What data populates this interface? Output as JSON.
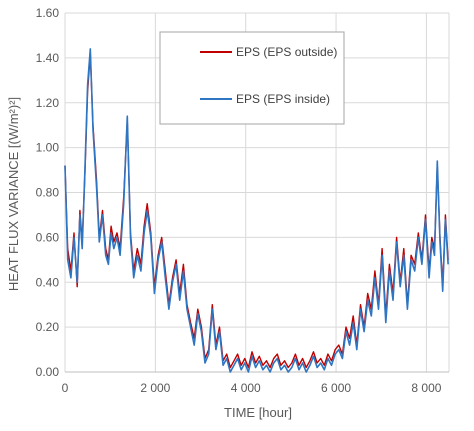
{
  "chart_data": {
    "type": "line",
    "title": "",
    "xlabel": "TIME [hour]",
    "ylabel": "HEAT FLUX VARIANCE [(W/m²)²]",
    "xlim": [
      0,
      8500
    ],
    "ylim": [
      0,
      1.6
    ],
    "x_ticks": [
      0,
      2000,
      4000,
      6000,
      8000
    ],
    "x_tick_labels": [
      "0",
      "2 000",
      "4 000",
      "6 000",
      "8 000"
    ],
    "y_ticks": [
      0,
      0.2,
      0.4,
      0.6,
      0.8,
      1.0,
      1.2,
      1.4,
      1.6
    ],
    "y_tick_labels": [
      "0.00",
      "0.20",
      "0.40",
      "0.60",
      "0.80",
      "1.00",
      "1.20",
      "1.40",
      "1.60"
    ],
    "grid": {
      "horizontal": true,
      "vertical": true
    },
    "legend_position": "top-right",
    "series": [
      {
        "name": "EPS (EPS outside)",
        "color": "#c00000",
        "x": [
          0,
          60,
          130,
          200,
          270,
          330,
          380,
          440,
          500,
          560,
          620,
          700,
          760,
          830,
          900,
          960,
          1020,
          1080,
          1150,
          1220,
          1300,
          1380,
          1450,
          1520,
          1600,
          1680,
          1750,
          1820,
          1900,
          1980,
          2060,
          2140,
          2220,
          2300,
          2380,
          2460,
          2540,
          2620,
          2700,
          2780,
          2860,
          2940,
          3020,
          3100,
          3180,
          3260,
          3340,
          3420,
          3500,
          3580,
          3660,
          3740,
          3820,
          3900,
          3980,
          4060,
          4140,
          4220,
          4300,
          4380,
          4460,
          4540,
          4620,
          4700,
          4780,
          4860,
          4940,
          5020,
          5100,
          5180,
          5260,
          5340,
          5420,
          5500,
          5580,
          5660,
          5740,
          5820,
          5900,
          5980,
          6060,
          6140,
          6220,
          6300,
          6380,
          6460,
          6540,
          6620,
          6700,
          6780,
          6860,
          6940,
          7020,
          7100,
          7180,
          7260,
          7340,
          7420,
          7500,
          7580,
          7660,
          7740,
          7820,
          7900,
          7980,
          8060,
          8120,
          8180,
          8240,
          8300,
          8360,
          8420,
          8480
        ],
        "y": [
          0.92,
          0.55,
          0.45,
          0.62,
          0.38,
          0.72,
          0.58,
          0.88,
          1.25,
          1.42,
          1.1,
          0.85,
          0.6,
          0.72,
          0.55,
          0.5,
          0.65,
          0.58,
          0.62,
          0.55,
          0.78,
          1.12,
          0.62,
          0.45,
          0.55,
          0.48,
          0.65,
          0.75,
          0.62,
          0.38,
          0.52,
          0.6,
          0.45,
          0.3,
          0.42,
          0.5,
          0.35,
          0.48,
          0.3,
          0.22,
          0.15,
          0.28,
          0.2,
          0.06,
          0.1,
          0.3,
          0.12,
          0.2,
          0.05,
          0.08,
          0.02,
          0.05,
          0.08,
          0.03,
          0.06,
          0.02,
          0.09,
          0.04,
          0.07,
          0.03,
          0.05,
          0.02,
          0.06,
          0.08,
          0.03,
          0.05,
          0.02,
          0.04,
          0.08,
          0.03,
          0.06,
          0.02,
          0.05,
          0.09,
          0.04,
          0.06,
          0.03,
          0.08,
          0.05,
          0.1,
          0.12,
          0.08,
          0.2,
          0.15,
          0.25,
          0.12,
          0.3,
          0.2,
          0.35,
          0.28,
          0.45,
          0.3,
          0.55,
          0.25,
          0.48,
          0.35,
          0.6,
          0.4,
          0.55,
          0.3,
          0.52,
          0.48,
          0.62,
          0.5,
          0.7,
          0.45,
          0.6,
          0.55,
          0.92,
          0.6,
          0.38,
          0.7,
          0.5
        ]
      },
      {
        "name": "EPS (EPS inside)",
        "color": "#2e75c2",
        "x": [
          0,
          60,
          130,
          200,
          270,
          330,
          380,
          440,
          500,
          560,
          620,
          700,
          760,
          830,
          900,
          960,
          1020,
          1080,
          1150,
          1220,
          1300,
          1380,
          1450,
          1520,
          1600,
          1680,
          1750,
          1820,
          1900,
          1980,
          2060,
          2140,
          2220,
          2300,
          2380,
          2460,
          2540,
          2620,
          2700,
          2780,
          2860,
          2940,
          3020,
          3100,
          3180,
          3260,
          3340,
          3420,
          3500,
          3580,
          3660,
          3740,
          3820,
          3900,
          3980,
          4060,
          4140,
          4220,
          4300,
          4380,
          4460,
          4540,
          4620,
          4700,
          4780,
          4860,
          4940,
          5020,
          5100,
          5180,
          5260,
          5340,
          5420,
          5500,
          5580,
          5660,
          5740,
          5820,
          5900,
          5980,
          6060,
          6140,
          6220,
          6300,
          6380,
          6460,
          6540,
          6620,
          6700,
          6780,
          6860,
          6940,
          7020,
          7100,
          7180,
          7260,
          7340,
          7420,
          7500,
          7580,
          7660,
          7740,
          7820,
          7900,
          7980,
          8060,
          8120,
          8180,
          8240,
          8300,
          8360,
          8420,
          8480
        ],
        "y": [
          0.92,
          0.5,
          0.42,
          0.6,
          0.4,
          0.7,
          0.55,
          0.9,
          1.28,
          1.44,
          1.08,
          0.82,
          0.58,
          0.7,
          0.52,
          0.48,
          0.62,
          0.55,
          0.6,
          0.52,
          0.75,
          1.14,
          0.6,
          0.42,
          0.52,
          0.45,
          0.62,
          0.72,
          0.6,
          0.35,
          0.5,
          0.58,
          0.42,
          0.28,
          0.4,
          0.48,
          0.32,
          0.45,
          0.28,
          0.2,
          0.12,
          0.26,
          0.18,
          0.04,
          0.08,
          0.28,
          0.1,
          0.18,
          0.03,
          0.06,
          0.0,
          0.03,
          0.06,
          0.01,
          0.04,
          0.0,
          0.07,
          0.02,
          0.05,
          0.01,
          0.03,
          0.0,
          0.04,
          0.06,
          0.01,
          0.03,
          0.0,
          0.02,
          0.06,
          0.01,
          0.04,
          0.0,
          0.03,
          0.07,
          0.02,
          0.04,
          0.01,
          0.06,
          0.03,
          0.08,
          0.1,
          0.06,
          0.18,
          0.12,
          0.22,
          0.1,
          0.28,
          0.18,
          0.32,
          0.25,
          0.42,
          0.28,
          0.52,
          0.22,
          0.45,
          0.32,
          0.58,
          0.38,
          0.52,
          0.28,
          0.5,
          0.45,
          0.6,
          0.48,
          0.68,
          0.42,
          0.58,
          0.52,
          0.94,
          0.58,
          0.36,
          0.68,
          0.48
        ]
      }
    ],
    "styles": {
      "gridColor": "#d9d9d9",
      "axisColor": "#bfbfbf",
      "textColor": "#595959",
      "legendBorder": "#a6a6a6"
    }
  }
}
